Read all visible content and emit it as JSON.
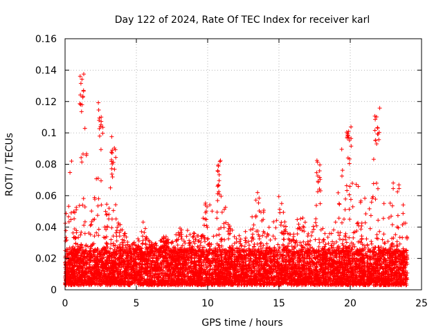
{
  "chart_data": {
    "type": "scatter",
    "title": "Day 122 of 2024, Rate Of TEC Index for receiver karl",
    "xlabel": "GPS time / hours",
    "ylabel": "ROTI / TECUs",
    "xlim": [
      0,
      25
    ],
    "ylim": [
      0,
      0.16
    ],
    "x_ticks": [
      0,
      5,
      10,
      15,
      20,
      25
    ],
    "y_ticks": [
      0,
      0.02,
      0.04,
      0.06,
      0.08,
      0.1,
      0.12,
      0.14,
      0.16
    ],
    "x_tick_labels": [
      "0",
      "5",
      "10",
      "15",
      "20",
      "25"
    ],
    "y_tick_labels": [
      "0",
      "0.02",
      "0.04",
      "0.06",
      "0.08",
      "0.1",
      "0.12",
      "0.14",
      "0.16"
    ],
    "grid": true,
    "marker": "+",
    "color": "#ff0000",
    "series": [
      {
        "name": "ROTI",
        "envelope": {
          "x": [
            0,
            0.2,
            0.4,
            0.6,
            0.8,
            1.0,
            1.2,
            1.4,
            1.6,
            2.0,
            2.4,
            2.6,
            2.8,
            3.2,
            3.4,
            3.6,
            4.0,
            4.5,
            5.0,
            5.5,
            6.0,
            6.5,
            7.0,
            7.5,
            8.0,
            8.5,
            9.0,
            9.5,
            10.0,
            10.2,
            10.5,
            10.8,
            11.0,
            11.5,
            12.0,
            12.5,
            13.0,
            13.5,
            14.0,
            14.5,
            15.0,
            15.5,
            16.0,
            16.5,
            17.0,
            17.5,
            17.8,
            18.2,
            18.5,
            19.0,
            19.4,
            19.6,
            19.9,
            20.2,
            20.5,
            21.0,
            21.5,
            21.9,
            22.1,
            22.4,
            22.8,
            23.2,
            23.6,
            24.0
          ],
          "ymax": [
            0.07,
            0.045,
            0.092,
            0.06,
            0.06,
            0.1,
            0.142,
            0.11,
            0.065,
            0.05,
            0.121,
            0.1,
            0.05,
            0.1,
            0.06,
            0.055,
            0.04,
            0.036,
            0.03,
            0.045,
            0.03,
            0.03,
            0.035,
            0.03,
            0.04,
            0.038,
            0.04,
            0.038,
            0.07,
            0.062,
            0.04,
            0.08,
            0.068,
            0.042,
            0.04,
            0.042,
            0.04,
            0.07,
            0.05,
            0.04,
            0.068,
            0.04,
            0.038,
            0.058,
            0.038,
            0.045,
            0.082,
            0.038,
            0.04,
            0.048,
            0.092,
            0.075,
            0.104,
            0.07,
            0.068,
            0.06,
            0.07,
            0.115,
            0.09,
            0.065,
            0.06,
            0.076,
            0.064,
            0.036
          ],
          "typical_band": [
            0.003,
            0.025
          ]
        },
        "peaks": [
          {
            "x": 1.2,
            "y": 0.142
          },
          {
            "x": 2.5,
            "y": 0.121
          },
          {
            "x": 3.4,
            "y": 0.1
          },
          {
            "x": 10.8,
            "y": 0.083
          },
          {
            "x": 17.8,
            "y": 0.083
          },
          {
            "x": 19.9,
            "y": 0.104
          },
          {
            "x": 21.9,
            "y": 0.116
          }
        ]
      }
    ]
  }
}
